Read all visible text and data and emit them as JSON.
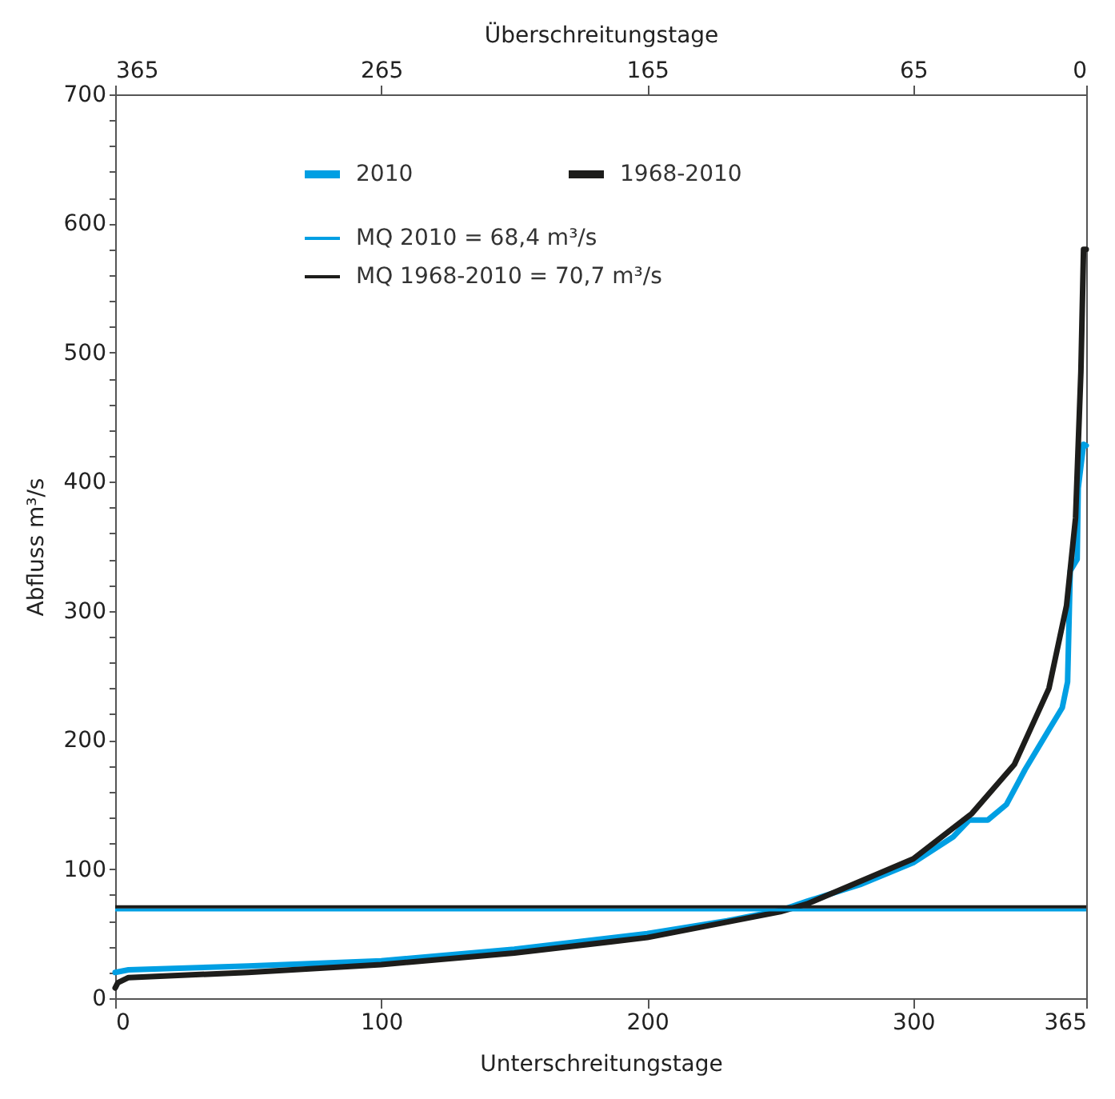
{
  "chart_data": {
    "type": "line",
    "xlabel": "Unterschreitungstage",
    "x2label": "Überschreitungstage",
    "ylabel": "Abfluss m³/s",
    "xlim": [
      0,
      365
    ],
    "xticks": [
      0,
      100,
      200,
      300,
      365
    ],
    "x2lim": [
      365,
      0
    ],
    "x2ticks": [
      365,
      265,
      165,
      65,
      0
    ],
    "ylim": [
      0,
      700
    ],
    "yticks": [
      0,
      {
        "value": 20,
        "label": null
      },
      {
        "value": 40,
        "label": null
      },
      {
        "value": 60,
        "label": null
      },
      {
        "value": 80,
        "label": null
      },
      100,
      {
        "value": 120,
        "label": null
      },
      {
        "value": 140,
        "label": null
      },
      {
        "value": 160,
        "label": null
      },
      {
        "value": 180,
        "label": null
      },
      200,
      {
        "value": 220,
        "label": null
      },
      {
        "value": 240,
        "label": null
      },
      {
        "value": 260,
        "label": null
      },
      {
        "value": 280,
        "label": null
      },
      300,
      {
        "value": 320,
        "label": null
      },
      {
        "value": 340,
        "label": null
      },
      {
        "value": 360,
        "label": null
      },
      {
        "value": 380,
        "label": null
      },
      400,
      {
        "value": 420,
        "label": null
      },
      {
        "value": 440,
        "label": null
      },
      {
        "value": 460,
        "label": null
      },
      {
        "value": 480,
        "label": null
      },
      500,
      {
        "value": 520,
        "label": null
      },
      {
        "value": 540,
        "label": null
      },
      {
        "value": 560,
        "label": null
      },
      {
        "value": 580,
        "label": null
      },
      600,
      {
        "value": 620,
        "label": null
      },
      {
        "value": 640,
        "label": null
      },
      {
        "value": 660,
        "label": null
      },
      {
        "value": 680,
        "label": null
      },
      700
    ],
    "grid": false,
    "legend": "top",
    "line_style": "solid",
    "series": [
      {
        "name": "2010",
        "color": "#009fe3",
        "x": [
          0,
          5,
          50,
          100,
          150,
          200,
          230,
          250,
          260,
          280,
          300,
          315,
          321,
          328,
          335,
          342,
          351,
          356,
          358,
          359,
          361.6,
          362,
          364,
          365
        ],
        "values": [
          20,
          22,
          25,
          29,
          38,
          50,
          60,
          68,
          75,
          88,
          105,
          125,
          138,
          138,
          150,
          177,
          208,
          225,
          245,
          331,
          340,
          395,
          429,
          428
        ]
      },
      {
        "name": "1968-2010",
        "color": "#1d1d1b",
        "x": [
          0,
          1,
          5,
          50,
          100,
          150,
          200,
          250,
          260,
          300,
          322,
          338,
          351,
          357.6,
          361,
          363,
          364,
          365
        ],
        "values": [
          8,
          12,
          16,
          20,
          26,
          35,
          47,
          67,
          73,
          108,
          143,
          181,
          240,
          304,
          372,
          485,
          580,
          580
        ]
      }
    ],
    "ref_lines": [
      {
        "axis": "y",
        "value": 68.4,
        "label": "MQ 2010 = 68,4 m³/s",
        "color": "#009fe3"
      },
      {
        "axis": "y",
        "value": 70.7,
        "label": "MQ 1968-2010 = 70,7 m³/s",
        "color": "#1d1d1b"
      }
    ]
  }
}
